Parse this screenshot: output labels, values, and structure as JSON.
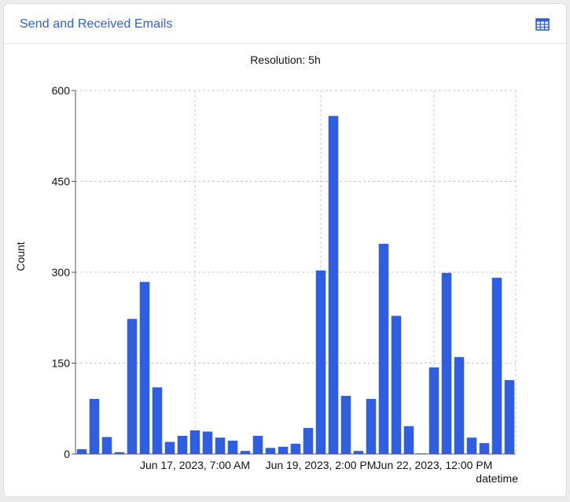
{
  "panel": {
    "title": "Send and Received Emails",
    "table_icon": "table-grid-icon",
    "accent_color": "#2f5fd6"
  },
  "chart_data": {
    "type": "bar",
    "subtitle": "Resolution: 5h",
    "xlabel": "datetime",
    "ylabel": "Count",
    "ylim": [
      0,
      600
    ],
    "yticks": [
      0,
      150,
      300,
      450,
      600
    ],
    "grid": true,
    "bar_color": "#2f5fe0",
    "x_tick_labels": [
      "Jun 17, 2023, 7:00 AM",
      "Jun 19, 2023, 2:00 PM",
      "Jun 22, 2023, 12:00 PM"
    ],
    "values": [
      8,
      91,
      28,
      3,
      223,
      284,
      110,
      20,
      30,
      39,
      37,
      27,
      22,
      5,
      30,
      10,
      12,
      17,
      43,
      303,
      558,
      96,
      5,
      91,
      347,
      228,
      46,
      1,
      143,
      299,
      160,
      27,
      18,
      291,
      122
    ]
  }
}
